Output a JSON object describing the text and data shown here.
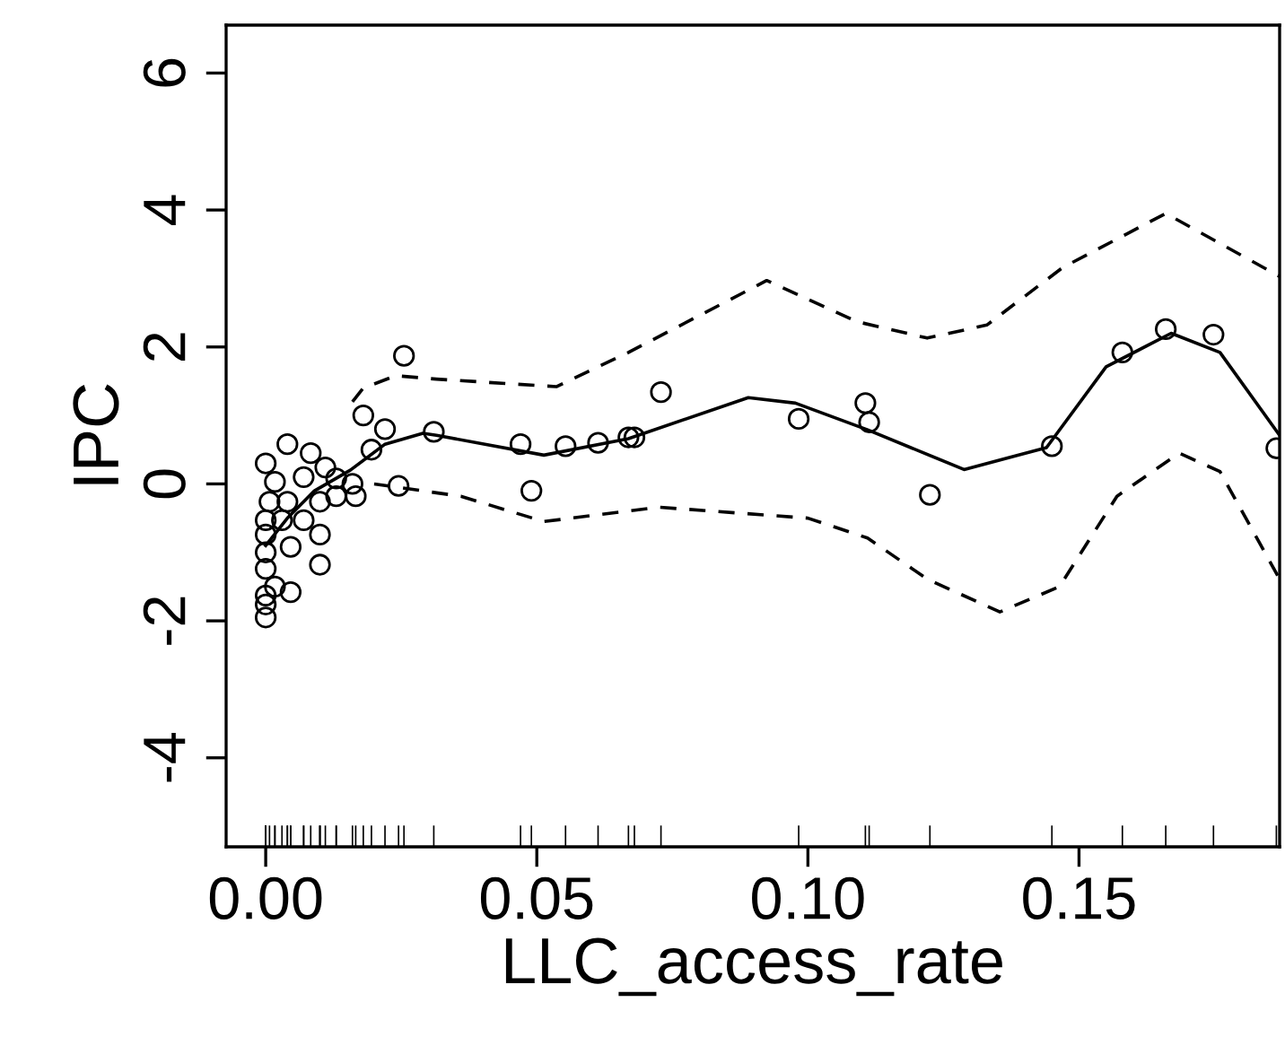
{
  "chart_data": {
    "type": "scatter",
    "xlabel": "LLC_access_rate",
    "ylabel": "IPC",
    "xlim": [
      -0.0073,
      0.187
    ],
    "ylim": [
      -5.3,
      6.7
    ],
    "xticks": [
      {
        "value": 0,
        "label": "0.00"
      },
      0.05,
      {
        "value": 0.1,
        "label": "0.10"
      },
      0.15
    ],
    "yticks": [
      -4,
      -2,
      0,
      2,
      4,
      6
    ],
    "grid": false,
    "legend": false,
    "series": [
      {
        "marker": "circle",
        "color": "#000000",
        "x": [
          0.0255,
          0.018,
          0.022,
          0.031,
          0.0195,
          0.0245,
          0,
          0.004,
          0.0083,
          0.011,
          0.0017,
          0.007,
          0.013,
          0.016,
          0.0166,
          0.013,
          0.0007,
          0.004,
          0.01,
          0,
          0.003,
          0.007,
          0,
          0.01,
          0.0046,
          0,
          0,
          0.01,
          0,
          0.0046,
          0,
          0,
          0.0017,
          0.047,
          0.049,
          0.0553,
          0.0613,
          0.0669,
          0.068,
          0.0729,
          0.0983,
          0.1106,
          0.1113,
          0.1225,
          0.145,
          0.158,
          0.166,
          0.1748,
          0.1864
        ],
        "values": [
          1.87,
          1.0,
          0.8,
          0.76,
          0.5,
          -0.03,
          0.3,
          0.58,
          0.45,
          0.24,
          0.03,
          0.1,
          0.08,
          0.0,
          -0.18,
          -0.18,
          -0.26,
          -0.26,
          -0.26,
          -0.53,
          -0.53,
          -0.53,
          -0.74,
          -0.74,
          -0.92,
          -1.0,
          -1.24,
          -1.18,
          -1.63,
          -1.58,
          -1.76,
          -1.95,
          -1.5,
          0.58,
          -0.1,
          0.55,
          0.6,
          0.68,
          0.68,
          1.34,
          0.95,
          1.18,
          0.9,
          -0.16,
          0.55,
          1.92,
          2.26,
          2.18,
          0.52
        ]
      },
      {
        "type": "line",
        "line_style": "solid",
        "color": "#000000",
        "x": [
          0,
          0.004,
          0.009,
          0.0156,
          0.022,
          0.029,
          0.0315,
          0.0513,
          0.0669,
          0.089,
          0.0977,
          0.111,
          0.1288,
          0.144,
          0.155,
          0.167,
          0.176,
          0.187
        ],
        "values": [
          -0.9,
          -0.5,
          -0.1,
          0.2,
          0.58,
          0.74,
          0.71,
          0.42,
          0.66,
          1.26,
          1.18,
          0.79,
          0.21,
          0.53,
          1.71,
          2.2,
          1.92,
          0.71
        ]
      },
      {
        "type": "line",
        "line_style": "dashed",
        "color": "#000000",
        "x": [
          0.016,
          0.018,
          0.024,
          0.0315,
          0.0536,
          0.0669,
          0.0924,
          0.109,
          0.122,
          0.133,
          0.147,
          0.166,
          0.187
        ],
        "values": [
          1.2,
          1.4,
          1.58,
          1.53,
          1.42,
          1.92,
          2.97,
          2.37,
          2.13,
          2.32,
          3.16,
          3.95,
          3.03
        ]
      },
      {
        "type": "line",
        "line_style": "dashed",
        "color": "#000000",
        "x": [
          0.02,
          0.0315,
          0.036,
          0.0513,
          0.0725,
          0.1,
          0.111,
          0.122,
          0.1354,
          0.1464,
          0.157,
          0.1685,
          0.176,
          0.187
        ],
        "values": [
          0.0,
          -0.13,
          -0.18,
          -0.55,
          -0.34,
          -0.5,
          -0.79,
          -1.39,
          -1.87,
          -1.5,
          -0.18,
          0.45,
          0.18,
          -1.39
        ]
      }
    ]
  }
}
